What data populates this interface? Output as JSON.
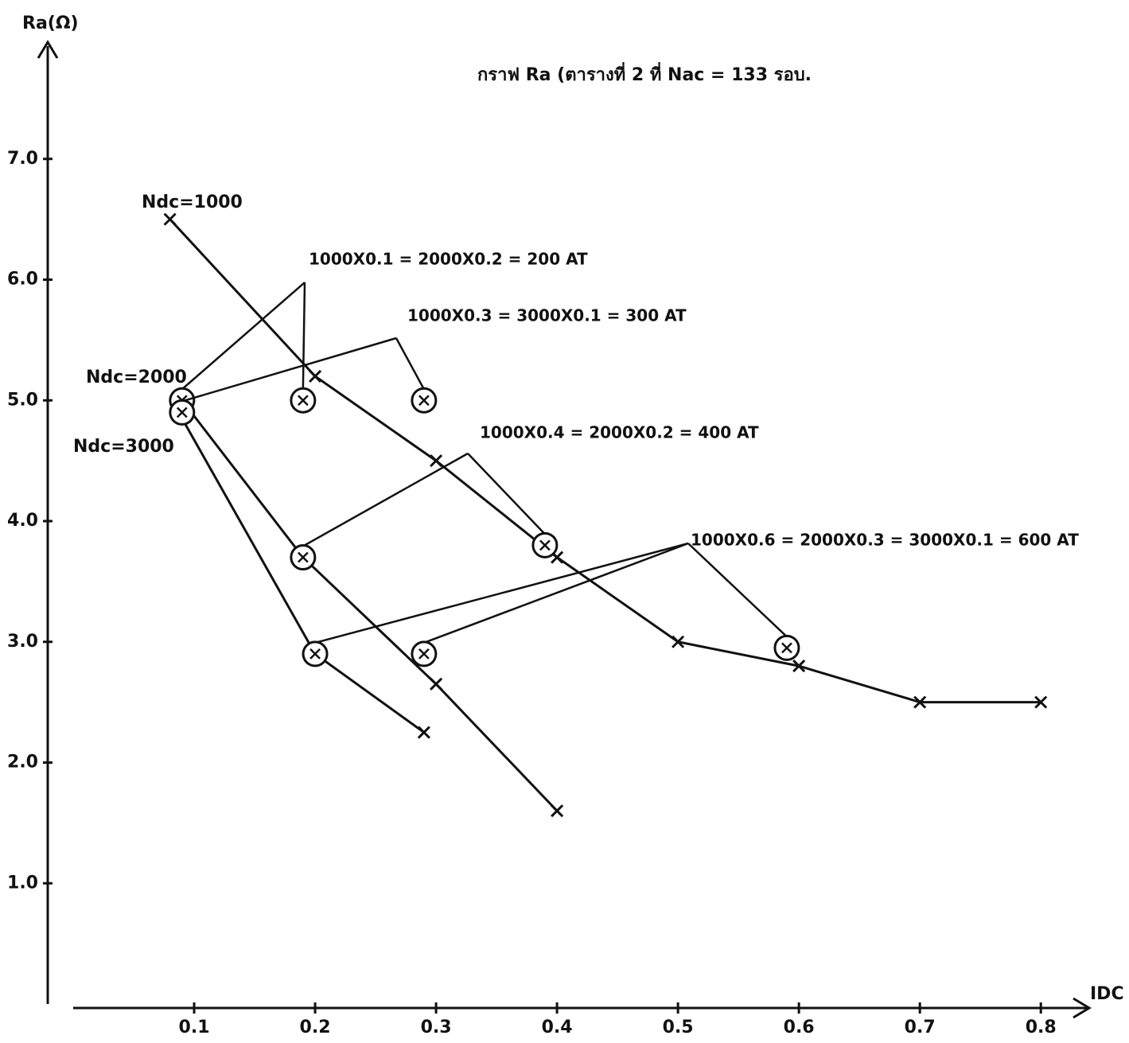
{
  "chart_data": {
    "type": "line",
    "title": "กราฟ Ra (ตารางที่ 2  ที่ Nac = 133 รอบ.",
    "x_label": "IDC",
    "y_label": "Ra(Ω)",
    "xlim": [
      0,
      0.84
    ],
    "ylim": [
      0,
      8
    ],
    "xticks": [
      0.1,
      0.2,
      0.3,
      0.4,
      0.5,
      0.6,
      0.7,
      0.8
    ],
    "yticks": [
      {
        "value": 1,
        "label": "1.0"
      },
      {
        "value": 2,
        "label": "2.0"
      },
      {
        "value": 3,
        "label": "3.0"
      },
      {
        "value": 4,
        "label": "4.0"
      },
      {
        "value": 5,
        "label": "5.0"
      },
      {
        "value": 6,
        "label": "6.0"
      },
      {
        "value": 7,
        "label": "7.0"
      }
    ],
    "series": [
      {
        "name": "Ndc=1000",
        "color": "#111111",
        "x": [
          0.08,
          0.2,
          0.3,
          0.4,
          0.5,
          0.6,
          0.7,
          0.8
        ],
        "values": [
          6.5,
          5.2,
          4.5,
          3.7,
          3.0,
          2.8,
          2.5,
          2.5
        ]
      },
      {
        "name": "Ndc=2000",
        "color": "#111111",
        "x": [
          0.09,
          0.19,
          0.3,
          0.4
        ],
        "values": [
          5.0,
          3.7,
          2.65,
          1.6
        ]
      },
      {
        "name": "Ndc=3000",
        "color": "#111111",
        "x": [
          0.09,
          0.2,
          0.29
        ],
        "values": [
          4.85,
          2.9,
          2.25
        ]
      }
    ],
    "annotations": [
      {
        "text": "1000X0.1 = 2000X0.2 = 200 AT",
        "x": [
          0.09,
          0.19
        ],
        "y": [
          5.0,
          5.0
        ]
      },
      {
        "text": "1000X0.3 = 3000X0.1 = 300 AT",
        "x": [
          0.09,
          0.29
        ],
        "y": [
          4.9,
          5.0
        ]
      },
      {
        "text": "1000X0.4 = 2000X0.2 = 400 AT",
        "x": [
          0.19,
          0.39
        ],
        "y": [
          3.7,
          3.8
        ]
      },
      {
        "text": "1000X0.6 = 2000X0.3 = 3000X0.1 = 600 AT",
        "x": [
          0.2,
          0.29,
          0.59
        ],
        "y": [
          2.9,
          2.9,
          2.95
        ]
      }
    ]
  }
}
